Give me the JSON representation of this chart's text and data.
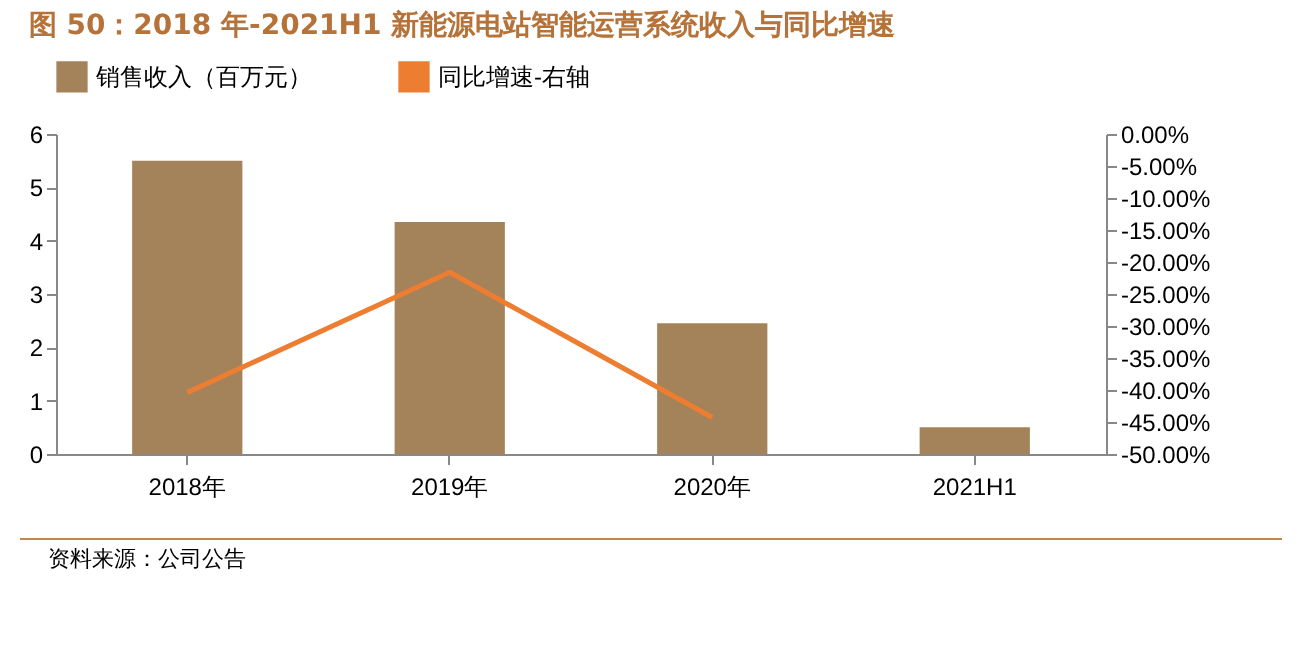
{
  "chart_data": {
    "type": "bar",
    "title": "图 50：2018 年-2021H1 新能源电站智能运营系统收入与同比增速",
    "categories": [
      "2018年",
      "2019年",
      "2020年",
      "2021H1"
    ],
    "series": [
      {
        "name": "销售收入（百万元）",
        "color": "#a5835a",
        "values": [
          5.5,
          4.35,
          2.45,
          0.5
        ]
      },
      {
        "name": "同比增速-右轴",
        "color": "#ed7d31",
        "type": "line",
        "axis": "y2",
        "values": [
          -40.4,
          -21.6,
          -44.3,
          null
        ]
      }
    ],
    "ylim": [
      0,
      6
    ],
    "yticks": [
      0,
      1,
      2,
      3,
      4,
      5,
      6
    ],
    "y2lim": [
      -50,
      0
    ],
    "y2ticks": [
      {
        "value": 0,
        "label": "0.00%"
      },
      {
        "value": -5,
        "label": "-5.00%"
      },
      {
        "value": -10,
        "label": "-10.00%"
      },
      {
        "value": -15,
        "label": "-15.00%"
      },
      {
        "value": -20,
        "label": "-20.00%"
      },
      {
        "value": -25,
        "label": "-25.00%"
      },
      {
        "value": -30,
        "label": "-30.00%"
      },
      {
        "value": -35,
        "label": "-35.00%"
      },
      {
        "value": -40,
        "label": "-40.00%"
      },
      {
        "value": -45,
        "label": "-45.00%"
      },
      {
        "value": -50,
        "label": "-50.00%"
      }
    ],
    "grid": false,
    "legend": "top",
    "annotations": [
      "资料来源：公司公告"
    ]
  }
}
